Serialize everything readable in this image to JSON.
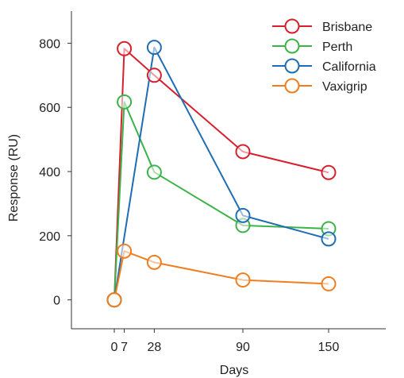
{
  "chart_data": {
    "type": "line",
    "title": "",
    "xlabel": "Days",
    "ylabel": "Response (RU)",
    "x_ticks": [
      0,
      7,
      28,
      90,
      150
    ],
    "y_ticks": [
      0,
      200,
      400,
      600,
      800
    ],
    "xlim": [
      -30,
      190
    ],
    "ylim": [
      -90,
      900
    ],
    "grid": false,
    "legend_position": "top-right",
    "series": [
      {
        "name": "Brisbane",
        "color": "#d7202e",
        "x": [
          0,
          7,
          28,
          90,
          150
        ],
        "y": [
          0,
          783,
          700,
          462,
          397
        ]
      },
      {
        "name": "Perth",
        "color": "#3cb34a",
        "x": [
          0,
          7,
          28,
          90,
          150
        ],
        "y": [
          0,
          617,
          398,
          232,
          222
        ]
      },
      {
        "name": "California",
        "color": "#1f6db2",
        "x": [
          0,
          28,
          90,
          150
        ],
        "y": [
          0,
          787,
          263,
          190
        ]
      },
      {
        "name": "Vaxigrip",
        "color": "#f07d20",
        "x": [
          0,
          7,
          28,
          90,
          150
        ],
        "y": [
          0,
          152,
          117,
          62,
          50
        ]
      }
    ]
  }
}
